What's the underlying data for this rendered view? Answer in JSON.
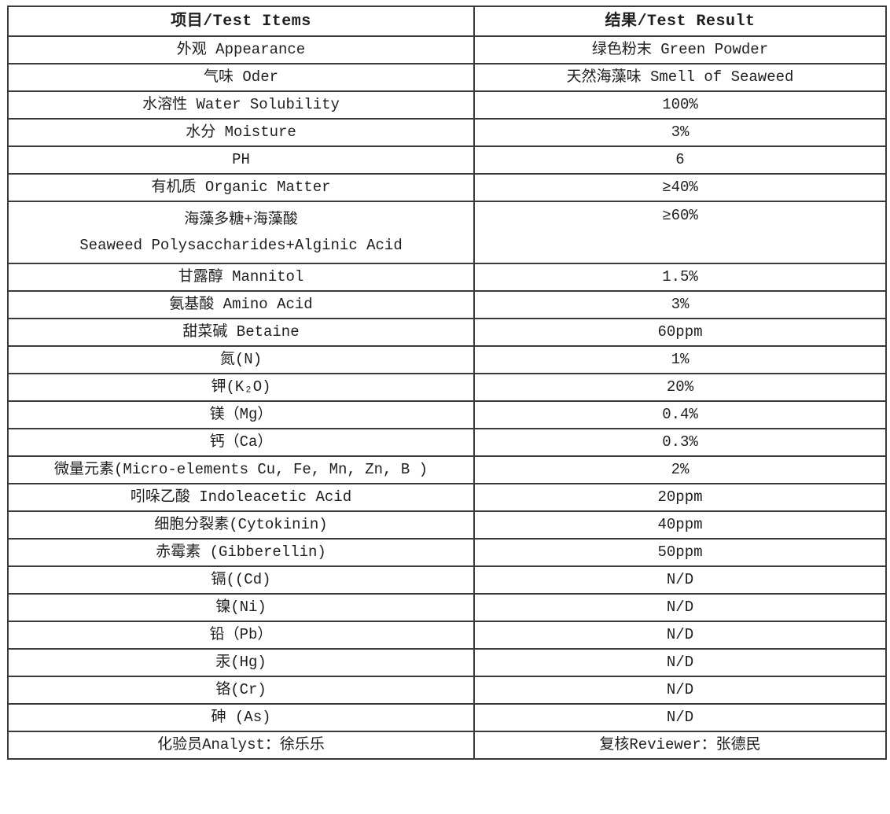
{
  "table": {
    "headers": {
      "item": "项目/Test Items",
      "result": "结果/Test Result"
    },
    "rows": [
      {
        "item": "外观 Appearance",
        "result": "绿色粉末 Green Powder"
      },
      {
        "item": "气味 Oder",
        "result": "天然海藻味 Smell of Seaweed"
      },
      {
        "item": "水溶性 Water Solubility",
        "result": "100%"
      },
      {
        "item": "水分 Moisture",
        "result": "3%"
      },
      {
        "item": "PH",
        "result": "6"
      },
      {
        "item": "有机质 Organic Matter",
        "result": "≥40%"
      },
      {
        "item": "海藻多糖+海藻酸",
        "item_line2": "Seaweed Polysaccharides+Alginic Acid",
        "result": "≥60%",
        "tall": true
      },
      {
        "item": "甘露醇 Mannitol",
        "result": "1.5%"
      },
      {
        "item": "氨基酸 Amino Acid",
        "result": "3%"
      },
      {
        "item": "甜菜碱 Betaine",
        "result": "60ppm"
      },
      {
        "item": "氮(N)",
        "result": "1%"
      },
      {
        "item": "钾(K₂O)",
        "result": "20%"
      },
      {
        "item": "镁（Mg）",
        "result": "0.4%"
      },
      {
        "item": "钙（Ca）",
        "result": "0.3%"
      },
      {
        "item": "微量元素(Micro-elements Cu, Fe, Mn, Zn, B )",
        "result": "2%"
      },
      {
        "item": "吲哚乙酸 Indoleacetic Acid",
        "result": "20ppm"
      },
      {
        "item": "细胞分裂素(Cytokinin)",
        "result": "40ppm"
      },
      {
        "item": "赤霉素 (Gibberellin)",
        "result": "50ppm"
      },
      {
        "item": "镉((Cd)",
        "result": "N/D"
      },
      {
        "item": "镍(Ni)",
        "result": "N/D"
      },
      {
        "item": "铅（Pb）",
        "result": "N/D"
      },
      {
        "item": "汞(Hg)",
        "result": "N/D"
      },
      {
        "item": "铬(Cr)",
        "result": "N/D"
      },
      {
        "item": "砷 (As)",
        "result": "N/D"
      },
      {
        "item": "化验员Analyst：徐乐乐",
        "result": "复核Reviewer：张德民"
      }
    ]
  }
}
